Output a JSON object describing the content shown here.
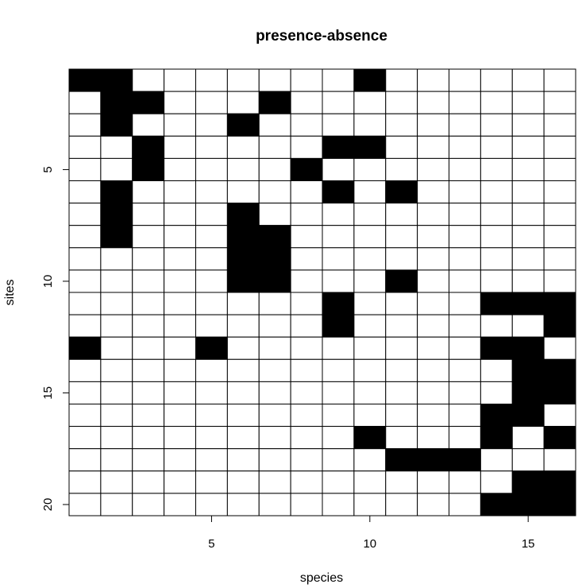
{
  "chart_data": {
    "type": "heatmap",
    "title": "presence-absence",
    "xlabel": "species",
    "ylabel": "sites",
    "x_ticks": [
      5,
      10,
      15
    ],
    "y_ticks": [
      5,
      10,
      15,
      20
    ],
    "n_species": 16,
    "n_sites": 20,
    "colors": {
      "present": "#000000",
      "absent": "#ffffff",
      "grid": "#000000"
    },
    "matrix": [
      [
        1,
        1,
        0,
        0,
        0,
        0,
        0,
        0,
        0,
        1,
        0,
        0,
        0,
        0,
        0,
        0
      ],
      [
        0,
        1,
        1,
        0,
        0,
        0,
        1,
        0,
        0,
        0,
        0,
        0,
        0,
        0,
        0,
        0
      ],
      [
        0,
        1,
        0,
        0,
        0,
        1,
        0,
        0,
        0,
        0,
        0,
        0,
        0,
        0,
        0,
        0
      ],
      [
        0,
        0,
        1,
        0,
        0,
        0,
        0,
        0,
        1,
        1,
        0,
        0,
        0,
        0,
        0,
        0
      ],
      [
        0,
        0,
        1,
        0,
        0,
        0,
        0,
        1,
        0,
        0,
        0,
        0,
        0,
        0,
        0,
        0
      ],
      [
        0,
        1,
        0,
        0,
        0,
        0,
        0,
        0,
        1,
        0,
        1,
        0,
        0,
        0,
        0,
        0
      ],
      [
        0,
        1,
        0,
        0,
        0,
        1,
        0,
        0,
        0,
        0,
        0,
        0,
        0,
        0,
        0,
        0
      ],
      [
        0,
        1,
        0,
        0,
        0,
        1,
        1,
        0,
        0,
        0,
        0,
        0,
        0,
        0,
        0,
        0
      ],
      [
        0,
        0,
        0,
        0,
        0,
        1,
        1,
        0,
        0,
        0,
        0,
        0,
        0,
        0,
        0,
        0
      ],
      [
        0,
        0,
        0,
        0,
        0,
        1,
        1,
        0,
        0,
        0,
        1,
        0,
        0,
        0,
        0,
        0
      ],
      [
        0,
        0,
        0,
        0,
        0,
        0,
        0,
        0,
        1,
        0,
        0,
        0,
        0,
        1,
        1,
        1
      ],
      [
        0,
        0,
        0,
        0,
        0,
        0,
        0,
        0,
        1,
        0,
        0,
        0,
        0,
        0,
        0,
        1
      ],
      [
        1,
        0,
        0,
        0,
        1,
        0,
        0,
        0,
        0,
        0,
        0,
        0,
        0,
        1,
        1,
        0
      ],
      [
        0,
        0,
        0,
        0,
        0,
        0,
        0,
        0,
        0,
        0,
        0,
        0,
        0,
        0,
        1,
        1
      ],
      [
        0,
        0,
        0,
        0,
        0,
        0,
        0,
        0,
        0,
        0,
        0,
        0,
        0,
        0,
        1,
        1
      ],
      [
        0,
        0,
        0,
        0,
        0,
        0,
        0,
        0,
        0,
        0,
        0,
        0,
        0,
        1,
        1,
        0
      ],
      [
        0,
        0,
        0,
        0,
        0,
        0,
        0,
        0,
        0,
        1,
        0,
        0,
        0,
        1,
        0,
        1
      ],
      [
        0,
        0,
        0,
        0,
        0,
        0,
        0,
        0,
        0,
        0,
        1,
        1,
        1,
        0,
        0,
        0
      ],
      [
        0,
        0,
        0,
        0,
        0,
        0,
        0,
        0,
        0,
        0,
        0,
        0,
        0,
        0,
        1,
        1
      ],
      [
        0,
        0,
        0,
        0,
        0,
        0,
        0,
        0,
        0,
        0,
        0,
        0,
        0,
        1,
        1,
        1
      ]
    ]
  }
}
